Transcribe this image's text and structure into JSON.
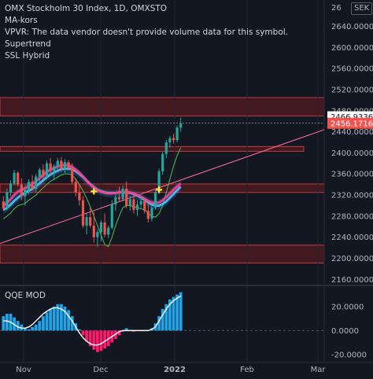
{
  "legend": {
    "title": "OMX Stockholm 30 Index, 1D, OMXSTO",
    "line2": "MA-kors",
    "line3": "VPVR: The data vendor doesn't provide volume data for this symbol.",
    "line4": "Supertrend",
    "line5": "SSL Hybrid"
  },
  "currency_badge": "SEK",
  "qqe_label": "QQE MOD",
  "colors": {
    "background": "#131722",
    "candle_up": "#26a69a",
    "candle_down": "#ef5350",
    "zone_fill": "#4a1a1f",
    "zone_border": "#c23c3c",
    "qqe_pos": "#1fa4e8",
    "qqe_neg": "#ff1a6b",
    "ma_fast": "#ff3d8b",
    "ssl_band": "#1e88e5",
    "supertrend": "#4caf50",
    "trendline": "#ff6b9d"
  },
  "chart_data": {
    "type": "candlestick",
    "x_labels": [
      "Nov",
      "Dec",
      "2022",
      "Feb",
      "Mar"
    ],
    "y_ticks": [
      "2160.0000",
      "2200.0000",
      "2240.0000",
      "2280.0000",
      "2320.0000",
      "2360.0000",
      "2400.0000",
      "2440.0000",
      "2480.0000",
      "2520.0000",
      "2560.0000",
      "2600.0000",
      "2640.0000"
    ],
    "price_top_label": "26",
    "price_labels": [
      {
        "value": 2466.9336,
        "text": "2466.9336"
      },
      {
        "value": 2456.1716,
        "text": "2456.1716"
      }
    ],
    "ylim": [
      2150,
      2690
    ],
    "zones": [
      {
        "y1": 2470,
        "y2": 2505
      },
      {
        "y1": 2403,
        "y2": 2412
      },
      {
        "y1": 2325,
        "y2": 2341
      },
      {
        "y1": 2191,
        "y2": 2225
      }
    ],
    "qqe_ticks": [
      "20.0000",
      "0.0000",
      "-20.0000"
    ],
    "qqe_ylim": [
      -26,
      37
    ],
    "candles": [
      {
        "o": 2308,
        "h": 2318,
        "l": 2290,
        "c": 2295
      },
      {
        "o": 2295,
        "h": 2332,
        "l": 2292,
        "c": 2325
      },
      {
        "o": 2325,
        "h": 2348,
        "l": 2318,
        "c": 2342
      },
      {
        "o": 2342,
        "h": 2368,
        "l": 2338,
        "c": 2362
      },
      {
        "o": 2362,
        "h": 2365,
        "l": 2336,
        "c": 2340
      },
      {
        "o": 2340,
        "h": 2352,
        "l": 2310,
        "c": 2318
      },
      {
        "o": 2318,
        "h": 2335,
        "l": 2300,
        "c": 2330
      },
      {
        "o": 2330,
        "h": 2350,
        "l": 2322,
        "c": 2345
      },
      {
        "o": 2345,
        "h": 2358,
        "l": 2328,
        "c": 2332
      },
      {
        "o": 2332,
        "h": 2360,
        "l": 2325,
        "c": 2355
      },
      {
        "o": 2355,
        "h": 2372,
        "l": 2345,
        "c": 2368
      },
      {
        "o": 2368,
        "h": 2378,
        "l": 2350,
        "c": 2355
      },
      {
        "o": 2355,
        "h": 2385,
        "l": 2350,
        "c": 2380
      },
      {
        "o": 2380,
        "h": 2390,
        "l": 2360,
        "c": 2366
      },
      {
        "o": 2366,
        "h": 2378,
        "l": 2348,
        "c": 2374
      },
      {
        "o": 2374,
        "h": 2390,
        "l": 2368,
        "c": 2385
      },
      {
        "o": 2385,
        "h": 2392,
        "l": 2365,
        "c": 2370
      },
      {
        "o": 2370,
        "h": 2388,
        "l": 2362,
        "c": 2382
      },
      {
        "o": 2382,
        "h": 2386,
        "l": 2366,
        "c": 2372
      },
      {
        "o": 2372,
        "h": 2380,
        "l": 2340,
        "c": 2345
      },
      {
        "o": 2345,
        "h": 2352,
        "l": 2318,
        "c": 2325
      },
      {
        "o": 2325,
        "h": 2340,
        "l": 2300,
        "c": 2310
      },
      {
        "o": 2310,
        "h": 2318,
        "l": 2258,
        "c": 2262
      },
      {
        "o": 2262,
        "h": 2285,
        "l": 2245,
        "c": 2278
      },
      {
        "o": 2278,
        "h": 2296,
        "l": 2258,
        "c": 2262
      },
      {
        "o": 2262,
        "h": 2288,
        "l": 2230,
        "c": 2240
      },
      {
        "o": 2240,
        "h": 2255,
        "l": 2222,
        "c": 2250
      },
      {
        "o": 2250,
        "h": 2272,
        "l": 2232,
        "c": 2268
      },
      {
        "o": 2268,
        "h": 2285,
        "l": 2240,
        "c": 2245
      },
      {
        "o": 2245,
        "h": 2262,
        "l": 2238,
        "c": 2258
      },
      {
        "o": 2258,
        "h": 2310,
        "l": 2255,
        "c": 2302
      },
      {
        "o": 2302,
        "h": 2322,
        "l": 2290,
        "c": 2316
      },
      {
        "o": 2316,
        "h": 2336,
        "l": 2308,
        "c": 2312
      },
      {
        "o": 2312,
        "h": 2338,
        "l": 2308,
        "c": 2332
      },
      {
        "o": 2332,
        "h": 2346,
        "l": 2295,
        "c": 2300
      },
      {
        "o": 2300,
        "h": 2318,
        "l": 2290,
        "c": 2312
      },
      {
        "o": 2312,
        "h": 2320,
        "l": 2285,
        "c": 2292
      },
      {
        "o": 2292,
        "h": 2310,
        "l": 2280,
        "c": 2302
      },
      {
        "o": 2302,
        "h": 2318,
        "l": 2295,
        "c": 2308
      },
      {
        "o": 2308,
        "h": 2315,
        "l": 2285,
        "c": 2290
      },
      {
        "o": 2290,
        "h": 2305,
        "l": 2268,
        "c": 2275
      },
      {
        "o": 2275,
        "h": 2300,
        "l": 2270,
        "c": 2296
      },
      {
        "o": 2296,
        "h": 2330,
        "l": 2292,
        "c": 2325
      },
      {
        "o": 2325,
        "h": 2370,
        "l": 2322,
        "c": 2365
      },
      {
        "o": 2365,
        "h": 2402,
        "l": 2358,
        "c": 2398
      },
      {
        "o": 2398,
        "h": 2425,
        "l": 2390,
        "c": 2420
      },
      {
        "o": 2420,
        "h": 2432,
        "l": 2410,
        "c": 2428
      },
      {
        "o": 2428,
        "h": 2436,
        "l": 2418,
        "c": 2424
      },
      {
        "o": 2424,
        "h": 2452,
        "l": 2420,
        "c": 2448
      },
      {
        "o": 2448,
        "h": 2467,
        "l": 2440,
        "c": 2456
      }
    ],
    "ma_fast": [
      2300,
      2305,
      2312,
      2320,
      2326,
      2330,
      2333,
      2337,
      2341,
      2346,
      2352,
      2358,
      2364,
      2368,
      2371,
      2374,
      2376,
      2377,
      2376,
      2373,
      2368,
      2362,
      2355,
      2347,
      2340,
      2334,
      2329,
      2326,
      2324,
      2323,
      2323,
      2324,
      2325,
      2326,
      2326,
      2325,
      2323,
      2320,
      2317,
      2313,
      2309,
      2306,
      2305,
      2306,
      2310,
      2316,
      2323,
      2330,
      2336,
      2342
    ],
    "ma_slow": [
      2292,
      2296,
      2302,
      2309,
      2315,
      2320,
      2324,
      2328,
      2332,
      2337,
      2342,
      2348,
      2354,
      2359,
      2363,
      2366,
      2369,
      2370,
      2370,
      2369,
      2365,
      2360,
      2354,
      2347,
      2341,
      2335,
      2330,
      2327,
      2325,
      2324,
      2324,
      2324,
      2325,
      2325,
      2325,
      2324,
      2322,
      2319,
      2315,
      2311,
      2306,
      2302,
      2300,
      2300,
      2303,
      2308,
      2315,
      2322,
      2329,
      2336
    ],
    "supertrend": [
      2275,
      2280,
      2286,
      2294,
      2300,
      2302,
      2304,
      2310,
      2315,
      2320,
      2327,
      2334,
      2340,
      2346,
      2350,
      2354,
      2358,
      2360,
      2360,
      2358,
      2350,
      2340,
      2328,
      2314,
      2298,
      2280,
      2262,
      2244,
      2226,
      2222,
      2240,
      2262,
      2280,
      2296,
      2300,
      2300,
      2298,
      2296,
      2294,
      2292,
      2286,
      2280,
      2278,
      2285,
      2300,
      2325,
      2350,
      2375,
      2395,
      2410
    ],
    "qqe": [
      12,
      14,
      14,
      11,
      8,
      5,
      2,
      1,
      3,
      5,
      8,
      12,
      15,
      18,
      20,
      22,
      22,
      20,
      17,
      12,
      6,
      1,
      -4,
      -9,
      -13,
      -16,
      -18,
      -17,
      -15,
      -13,
      -10,
      -7,
      -4,
      -1,
      2,
      0,
      -1,
      0,
      0,
      0,
      0,
      2,
      6,
      12,
      18,
      22,
      26,
      28,
      30,
      32
    ],
    "qqe_line": [
      8,
      8,
      7,
      5,
      3,
      2,
      2,
      3,
      5,
      8,
      11,
      14,
      16,
      18,
      19,
      19,
      18,
      16,
      12,
      8,
      3,
      -2,
      -6,
      -9,
      -11,
      -12,
      -12,
      -11,
      -9,
      -7,
      -5,
      -3,
      -1,
      0,
      0,
      0,
      0,
      0,
      0,
      0,
      0,
      1,
      3,
      8,
      13,
      18,
      22,
      25,
      27,
      29
    ]
  }
}
